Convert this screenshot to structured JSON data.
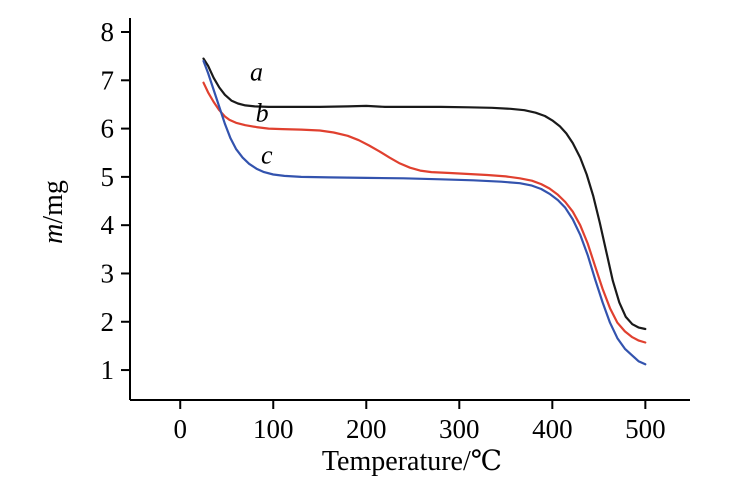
{
  "chart_data": {
    "type": "line",
    "title": "",
    "xlabel": "Temperature/℃",
    "ylabel_italic": "m",
    "ylabel_rest": "/mg",
    "xlim": [
      -54,
      548
    ],
    "ylim": [
      0.38,
      8.29
    ],
    "x_ticks": [
      0,
      100,
      200,
      300,
      400,
      500
    ],
    "y_ticks": [
      1,
      2,
      3,
      4,
      5,
      6,
      7,
      8
    ],
    "grid": false,
    "legend_position": "inline-curve-labels",
    "axis_color": "#000000",
    "series": [
      {
        "name": "a",
        "color": "#1a1a1a",
        "label_x": 82,
        "label_y": 7.0,
        "points": [
          [
            25,
            7.45
          ],
          [
            30,
            7.3
          ],
          [
            36,
            7.05
          ],
          [
            42,
            6.85
          ],
          [
            48,
            6.7
          ],
          [
            55,
            6.58
          ],
          [
            62,
            6.52
          ],
          [
            70,
            6.48
          ],
          [
            80,
            6.46
          ],
          [
            95,
            6.45
          ],
          [
            120,
            6.45
          ],
          [
            150,
            6.45
          ],
          [
            180,
            6.46
          ],
          [
            200,
            6.47
          ],
          [
            220,
            6.45
          ],
          [
            250,
            6.45
          ],
          [
            280,
            6.45
          ],
          [
            310,
            6.44
          ],
          [
            335,
            6.43
          ],
          [
            355,
            6.41
          ],
          [
            370,
            6.38
          ],
          [
            382,
            6.33
          ],
          [
            392,
            6.26
          ],
          [
            400,
            6.17
          ],
          [
            408,
            6.05
          ],
          [
            415,
            5.9
          ],
          [
            422,
            5.7
          ],
          [
            430,
            5.4
          ],
          [
            437,
            5.05
          ],
          [
            444,
            4.6
          ],
          [
            451,
            4.05
          ],
          [
            458,
            3.45
          ],
          [
            465,
            2.85
          ],
          [
            472,
            2.4
          ],
          [
            479,
            2.1
          ],
          [
            486,
            1.95
          ],
          [
            493,
            1.88
          ],
          [
            500,
            1.85
          ]
        ]
      },
      {
        "name": "b",
        "color": "#e0402f",
        "label_x": 88,
        "label_y": 6.15,
        "points": [
          [
            25,
            6.95
          ],
          [
            30,
            6.75
          ],
          [
            36,
            6.55
          ],
          [
            42,
            6.38
          ],
          [
            48,
            6.25
          ],
          [
            53,
            6.18
          ],
          [
            60,
            6.12
          ],
          [
            70,
            6.07
          ],
          [
            82,
            6.03
          ],
          [
            95,
            6.0
          ],
          [
            110,
            5.99
          ],
          [
            130,
            5.98
          ],
          [
            150,
            5.96
          ],
          [
            165,
            5.92
          ],
          [
            180,
            5.85
          ],
          [
            192,
            5.76
          ],
          [
            203,
            5.65
          ],
          [
            214,
            5.53
          ],
          [
            225,
            5.4
          ],
          [
            236,
            5.28
          ],
          [
            247,
            5.19
          ],
          [
            258,
            5.13
          ],
          [
            270,
            5.1
          ],
          [
            290,
            5.08
          ],
          [
            310,
            5.06
          ],
          [
            330,
            5.04
          ],
          [
            350,
            5.01
          ],
          [
            365,
            4.97
          ],
          [
            378,
            4.92
          ],
          [
            388,
            4.85
          ],
          [
            397,
            4.76
          ],
          [
            406,
            4.63
          ],
          [
            414,
            4.48
          ],
          [
            422,
            4.28
          ],
          [
            430,
            4.0
          ],
          [
            438,
            3.62
          ],
          [
            446,
            3.15
          ],
          [
            454,
            2.68
          ],
          [
            462,
            2.28
          ],
          [
            470,
            1.98
          ],
          [
            478,
            1.8
          ],
          [
            486,
            1.68
          ],
          [
            493,
            1.61
          ],
          [
            500,
            1.57
          ]
        ]
      },
      {
        "name": "c",
        "color": "#3353ae",
        "label_x": 93,
        "label_y": 5.28,
        "points": [
          [
            25,
            7.4
          ],
          [
            30,
            7.15
          ],
          [
            36,
            6.8
          ],
          [
            42,
            6.45
          ],
          [
            48,
            6.1
          ],
          [
            54,
            5.8
          ],
          [
            60,
            5.58
          ],
          [
            67,
            5.4
          ],
          [
            74,
            5.27
          ],
          [
            82,
            5.17
          ],
          [
            90,
            5.1
          ],
          [
            100,
            5.05
          ],
          [
            112,
            5.02
          ],
          [
            130,
            5.0
          ],
          [
            160,
            4.99
          ],
          [
            200,
            4.98
          ],
          [
            240,
            4.97
          ],
          [
            280,
            4.95
          ],
          [
            315,
            4.93
          ],
          [
            345,
            4.9
          ],
          [
            365,
            4.87
          ],
          [
            378,
            4.82
          ],
          [
            388,
            4.75
          ],
          [
            397,
            4.65
          ],
          [
            406,
            4.52
          ],
          [
            414,
            4.36
          ],
          [
            422,
            4.12
          ],
          [
            430,
            3.8
          ],
          [
            438,
            3.38
          ],
          [
            446,
            2.88
          ],
          [
            454,
            2.4
          ],
          [
            462,
            1.98
          ],
          [
            470,
            1.66
          ],
          [
            478,
            1.44
          ],
          [
            486,
            1.3
          ],
          [
            493,
            1.18
          ],
          [
            500,
            1.12
          ]
        ]
      }
    ]
  }
}
